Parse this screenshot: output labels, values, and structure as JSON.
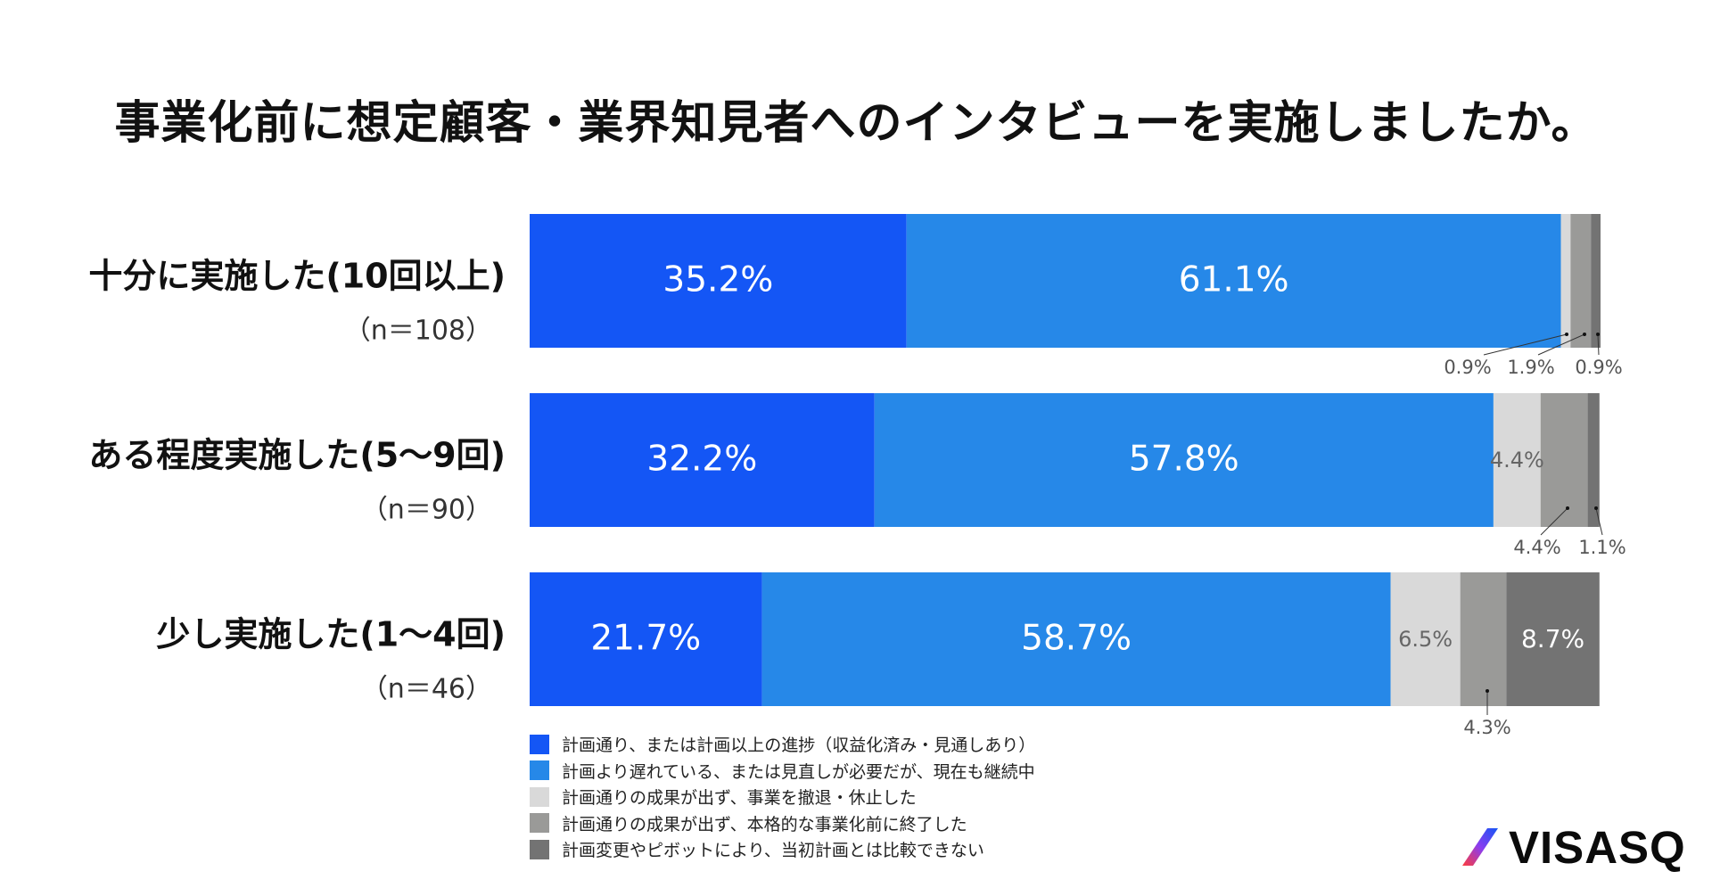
{
  "chart_data": {
    "type": "bar",
    "orientation": "horizontal-stacked-100",
    "title": "事業化前に想定顧客・業界知見者へのインタビューを実施しましたか。",
    "categories": [
      {
        "label": "十分に実施した(10回以上)",
        "n": "（n＝108）"
      },
      {
        "label": "ある程度実施した(5〜9回)",
        "n": "（n＝90）"
      },
      {
        "label": "少し実施した(1〜4回)",
        "n": "（n＝46）"
      }
    ],
    "series": [
      {
        "name": "計画通り、または計画以上の進捗（収益化済み・見通しあり）",
        "color": "#1456f5",
        "values": [
          35.2,
          32.2,
          21.7
        ],
        "labels": [
          "35.2%",
          "32.2%",
          "21.7%"
        ]
      },
      {
        "name": "計画より遅れている、または見直しが必要だが、現在も継続中",
        "color": "#2688e8",
        "values": [
          61.1,
          57.8,
          58.7
        ],
        "labels": [
          "61.1%",
          "57.8%",
          "58.7%"
        ]
      },
      {
        "name": "計画通りの成果が出ず、事業を撤退・休止した",
        "color": "#d9d9d9",
        "values": [
          0.9,
          4.4,
          6.5
        ],
        "labels": [
          "0.9%",
          "4.4%",
          "6.5%"
        ]
      },
      {
        "name": "計画通りの成果が出ず、本格的な事業化前に終了した",
        "color": "#9a9a98",
        "values": [
          1.9,
          4.4,
          4.3
        ],
        "labels": [
          "1.9%",
          "4.4%",
          "4.3%"
        ]
      },
      {
        "name": "計画変更やピボットにより、当初計画とは比較できない",
        "color": "#737373",
        "values": [
          0.9,
          1.1,
          8.7
        ],
        "labels": [
          "0.9%",
          "1.1%",
          "8.7%"
        ]
      }
    ],
    "xlim": [
      0,
      100
    ],
    "legend_position": "bottom-left"
  },
  "brand": {
    "logo_text": "VISASQ"
  }
}
